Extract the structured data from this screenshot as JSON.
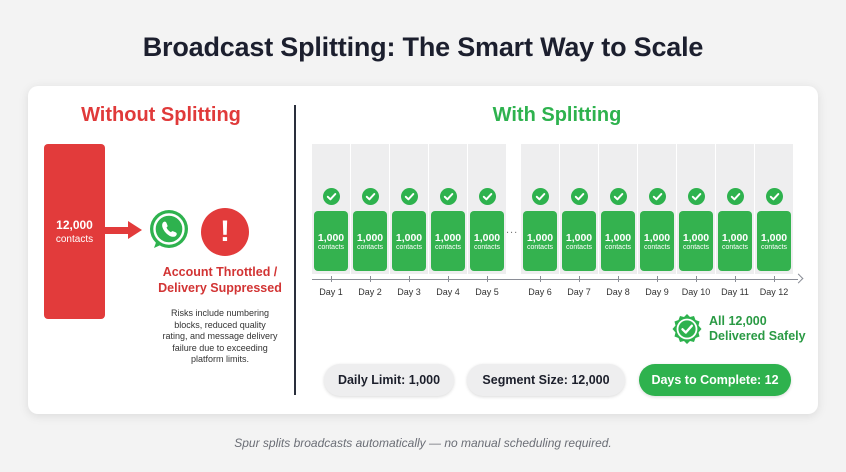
{
  "title": "Broadcast Splitting: The Smart Way to Scale",
  "left": {
    "heading": "Without Splitting",
    "block": {
      "count": "12,000",
      "unit": "contacts"
    },
    "icons": [
      "whatsapp-icon",
      "alert-icon"
    ],
    "alert_mark": "!",
    "warning_line1": "Account Throttled /",
    "warning_line2": "Delivery Suppressed",
    "risks": [
      "Risks include numbering",
      "blocks, reduced quality",
      "rating, and message delivery",
      "failure due to exceeding",
      "platform limits."
    ]
  },
  "right": {
    "heading": "With Splitting",
    "block_count": "1,000",
    "block_unit": "contacts",
    "ellipsis": "...",
    "days": [
      "Day 1",
      "Day 2",
      "Day 3",
      "Day 4",
      "Day 5",
      "Day 6",
      "Day 7",
      "Day 8",
      "Day 9",
      "Day 10",
      "Day 11",
      "Day 12"
    ],
    "summary_line1": "All 12,000",
    "summary_line2": "Delivered Safely"
  },
  "pills": {
    "daily_limit": "Daily Limit: 1,000",
    "segment_size": "Segment Size: 12,000",
    "days_to_complete": "Days to Complete: 12"
  },
  "footer": "Spur splits broadcasts automatically — no manual scheduling required.",
  "colors": {
    "red": "#e23b3b",
    "green": "#2eb24e",
    "dark": "#1c1f2e"
  }
}
